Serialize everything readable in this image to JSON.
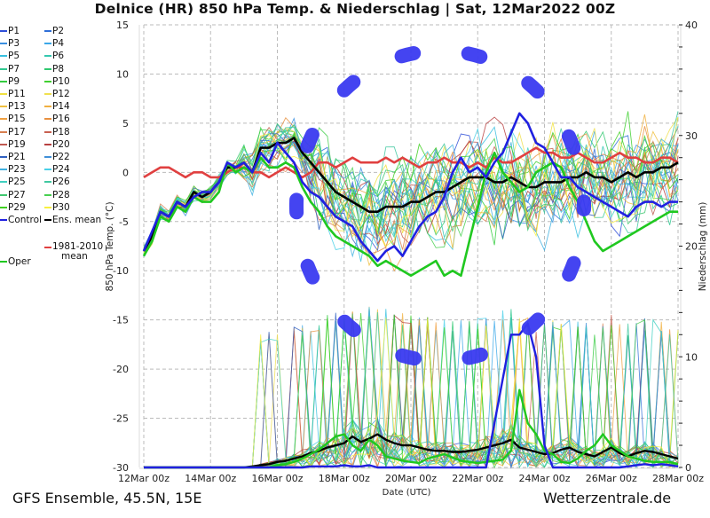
{
  "title": "Delnice  (HR)  850 hPa Temp. & Niederschlag | Sat, 12Mar2022 00Z",
  "footer": {
    "left": "GFS Ensemble, 45.5N, 15E",
    "right": "Wetterzentrale.de"
  },
  "legend": [
    {
      "label": "P1",
      "color": "#2f4fd8"
    },
    {
      "label": "P2",
      "color": "#2f6fd8"
    },
    {
      "label": "P3",
      "color": "#3a8fe0"
    },
    {
      "label": "P4",
      "color": "#3aa7e8"
    },
    {
      "label": "P5",
      "color": "#38c0e0"
    },
    {
      "label": "P6",
      "color": "#34c8b0"
    },
    {
      "label": "P7",
      "color": "#30c890"
    },
    {
      "label": "P8",
      "color": "#30c870"
    },
    {
      "label": "P9",
      "color": "#34cc40"
    },
    {
      "label": "P10",
      "color": "#40d030"
    },
    {
      "label": "P11",
      "color": "#f0e040"
    },
    {
      "label": "P12",
      "color": "#f0e050"
    },
    {
      "label": "P13",
      "color": "#f0c040"
    },
    {
      "label": "P14",
      "color": "#f0b040"
    },
    {
      "label": "P15",
      "color": "#f0a040"
    },
    {
      "label": "P16",
      "color": "#e89040"
    },
    {
      "label": "P17",
      "color": "#d88050"
    },
    {
      "label": "P18",
      "color": "#c86050"
    },
    {
      "label": "P19",
      "color": "#c05850"
    },
    {
      "label": "P20",
      "color": "#b84040"
    },
    {
      "label": "P21",
      "color": "#3060c0"
    },
    {
      "label": "P22",
      "color": "#4090d8"
    },
    {
      "label": "P23",
      "color": "#40b0e0"
    },
    {
      "label": "P24",
      "color": "#48d0e8"
    },
    {
      "label": "P25",
      "color": "#40d0c0"
    },
    {
      "label": "P26",
      "color": "#40c8a0"
    },
    {
      "label": "P27",
      "color": "#40c870"
    },
    {
      "label": "P28",
      "color": "#48d050"
    },
    {
      "label": "P29",
      "color": "#40d020"
    },
    {
      "label": "P30",
      "color": "#f8f040"
    },
    {
      "label": "Control",
      "color": "#2020e0"
    },
    {
      "label": "Ens. mean",
      "color": "#000000"
    },
    {
      "label": "1981-2010 mean",
      "color": "#e04040"
    },
    {
      "label": "Oper",
      "color": "#20c820"
    }
  ],
  "annotation": {
    "type": "dashed-oval",
    "color": "#3a3af0"
  },
  "chart_data": {
    "type": "line",
    "title": "Delnice  (HR)  850 hPa Temp. & Niederschlag | Sat, 12Mar2022 00Z",
    "xlabel": "Date (UTC)",
    "ylabel": "850 hPa Temp. (°C)",
    "ylabel_right": "Niederschlag (mm)",
    "x_ticks": [
      "12Mar 00z",
      "14Mar 00z",
      "16Mar 00z",
      "18Mar 00z",
      "20Mar 00z",
      "22Mar 00z",
      "24Mar 00z",
      "26Mar 00z",
      "28Mar 00z"
    ],
    "x_range_hours": [
      0,
      384
    ],
    "step_hours": 6,
    "ylim": [
      -30,
      15
    ],
    "y_ticks": [
      15,
      10,
      5,
      0,
      -5,
      -10,
      -15,
      -20,
      -25,
      -30
    ],
    "ylim_right": [
      0,
      40
    ],
    "y_ticks_right": [
      40,
      30,
      20,
      10,
      0
    ],
    "grid": true,
    "legend_placement": "left-outside",
    "temperature_series": [
      {
        "name": "Control",
        "values": [
          -8,
          -6,
          -4,
          -4.5,
          -3,
          -3.5,
          -2.5,
          -2,
          -2,
          -1,
          1,
          0.5,
          1,
          0,
          2,
          1,
          3,
          2,
          1,
          -1,
          -2,
          -2.5,
          -3.5,
          -4.5,
          -5,
          -5.5,
          -7,
          -8,
          -9,
          -8,
          -7.5,
          -8.5,
          -7,
          -5.5,
          -4.5,
          -4,
          -2.5,
          0,
          1.5,
          0,
          0.5,
          -0.5,
          1,
          2,
          4,
          6,
          5,
          3,
          2.5,
          1,
          -0.5,
          -0.5,
          -1.5,
          -2,
          -2.5,
          -3,
          -3.5,
          -4,
          -4.5,
          -3.5,
          -3,
          -3,
          -3.5,
          -3,
          -3
        ]
      },
      {
        "name": "Ens. mean",
        "values": [
          -8,
          -6.5,
          -4,
          -4.5,
          -3,
          -3.5,
          -2,
          -2.5,
          -2,
          -1,
          0.5,
          0.5,
          1,
          0,
          2.5,
          2.5,
          3,
          3,
          3.5,
          2,
          1,
          0,
          -1,
          -2,
          -2.5,
          -3,
          -3.5,
          -4,
          -4,
          -3.5,
          -3.5,
          -3.5,
          -3,
          -3,
          -2.5,
          -2,
          -2,
          -1.5,
          -1,
          -0.5,
          -0.5,
          -0.5,
          -1,
          -1,
          -0.5,
          -1,
          -1.5,
          -1.5,
          -1,
          -1,
          -1,
          -0.5,
          -0.5,
          0,
          -0.5,
          -0.5,
          -1,
          -0.5,
          0,
          -0.5,
          0,
          0,
          0.5,
          0.5,
          1
        ]
      },
      {
        "name": "Oper",
        "values": [
          -8.5,
          -7,
          -4.5,
          -5,
          -3.5,
          -4,
          -2.5,
          -3,
          -3,
          -2,
          1,
          0,
          0.5,
          0,
          1.5,
          0.5,
          0.5,
          1,
          0.5,
          -1.5,
          -3,
          -4,
          -5.5,
          -6.5,
          -7,
          -7.5,
          -8,
          -8.5,
          -9.5,
          -9,
          -9.5,
          -10,
          -10.5,
          -10,
          -9.5,
          -9,
          -10.5,
          -10,
          -10.5,
          -7,
          -3.5,
          0,
          2,
          0,
          -1,
          -2,
          -1.5,
          0,
          0.5,
          1,
          0.5,
          -1.5,
          -3,
          -5,
          -7,
          -8,
          -7.5,
          -7,
          -6.5,
          -6,
          -5.5,
          -5,
          -4.5,
          -4,
          -4
        ]
      },
      {
        "name": "1981-2010 mean",
        "values": [
          -0.5,
          0,
          0.5,
          0.5,
          0,
          -0.5,
          0,
          0,
          -0.5,
          -0.5,
          0,
          0.5,
          0.5,
          0,
          0,
          -0.5,
          0,
          0.5,
          0,
          -0.5,
          0,
          1,
          1,
          0.5,
          1,
          1.5,
          1,
          1,
          1,
          1.5,
          1,
          1.5,
          1,
          0.5,
          1,
          1,
          1.5,
          1,
          1,
          0.5,
          1,
          0.5,
          1.5,
          1,
          1,
          1.5,
          2,
          2.5,
          2,
          2,
          1.5,
          1.5,
          2,
          1.5,
          1,
          1,
          1.5,
          2,
          1.5,
          1.5,
          1,
          1,
          1.5,
          1.5,
          1
        ]
      }
    ],
    "precip_series": [
      {
        "name": "Control",
        "values": [
          0,
          0,
          0,
          0,
          0,
          0,
          0,
          0,
          0,
          0,
          0,
          0,
          0,
          0,
          0,
          0,
          0,
          0,
          0,
          0,
          0.1,
          0.1,
          0.1,
          0.1,
          0.2,
          0.1,
          0.1,
          0.2,
          0,
          0,
          0,
          0,
          0,
          0,
          0,
          0,
          0,
          0,
          0,
          0,
          0,
          0,
          4,
          8,
          12,
          12,
          13,
          10,
          2,
          0,
          0,
          0,
          0,
          0,
          0,
          0,
          0,
          0,
          0.1,
          0.2,
          0.3,
          0.2,
          0.3,
          0.2,
          0.1
        ]
      },
      {
        "name": "Ens. mean",
        "values": [
          0,
          0,
          0,
          0,
          0,
          0,
          0,
          0,
          0,
          0,
          0,
          0,
          0,
          0.1,
          0.2,
          0.3,
          0.5,
          0.6,
          0.8,
          1,
          1.3,
          1.5,
          1.8,
          2,
          2.2,
          2.8,
          2.3,
          2.6,
          3,
          2.5,
          2.2,
          2,
          2,
          1.8,
          1.6,
          1.5,
          1.5,
          1.4,
          1.4,
          1.5,
          1.6,
          1.8,
          2,
          2.2,
          2.5,
          1.8,
          1.6,
          1.4,
          1.2,
          1.3,
          1.6,
          1.8,
          1.4,
          1.2,
          1,
          1.4,
          1.8,
          1.3,
          1,
          1.3,
          1.5,
          1.4,
          1.2,
          1,
          0.8
        ]
      },
      {
        "name": "Oper",
        "values": [
          0,
          0,
          0,
          0,
          0,
          0,
          0,
          0,
          0,
          0,
          0,
          0,
          0,
          0,
          0,
          0,
          0.2,
          0.3,
          0.5,
          0.8,
          1.2,
          1.6,
          2.2,
          2.8,
          3,
          2,
          1.5,
          2.5,
          2,
          1,
          0.8,
          0.6,
          0.5,
          0.4,
          0.8,
          1,
          1.2,
          0.9,
          0.6,
          0.5,
          0.4,
          0.5,
          0.6,
          0.7,
          1.5,
          7,
          4,
          3,
          1.5,
          1.2,
          0.5,
          0.4,
          0.8,
          1.5,
          2,
          3,
          2,
          1.5,
          1,
          0.8,
          0.6,
          0.5,
          0.5,
          0.5,
          0.3
        ]
      }
    ]
  }
}
